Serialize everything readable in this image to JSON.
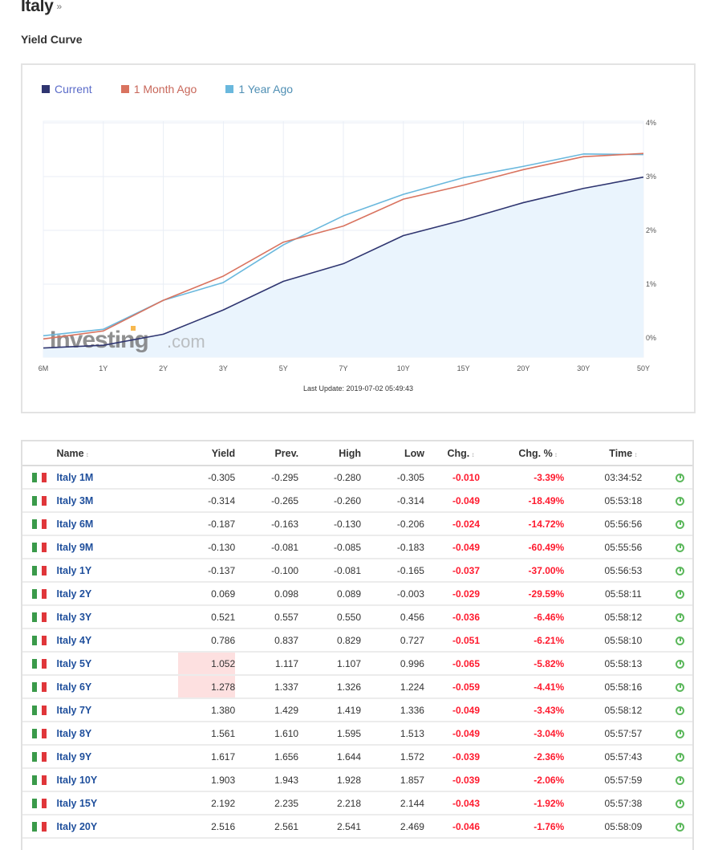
{
  "header": {
    "title": "Italy",
    "title_arrow": "»",
    "section_title": "Yield Curve"
  },
  "chart": {
    "legend": [
      {
        "label": "Current",
        "color": "#2f3570",
        "text_color": "#5a6bc9"
      },
      {
        "label": "1 Month Ago",
        "color": "#d9735f",
        "text_color": "#c8675a"
      },
      {
        "label": "1 Year Ago",
        "color": "#6ab8dd",
        "text_color": "#4f8fb4"
      }
    ],
    "watermark": {
      "brand": "Investing",
      "suffix": ".com"
    },
    "last_update": "Last Update: 2019-07-02 05:49:43",
    "area_fill": "#eaf4fd",
    "grid_color": "#e9eef6"
  },
  "chart_data": {
    "type": "line",
    "title": "Yield Curve",
    "xlabel": "",
    "ylabel": "",
    "categories": [
      "6M",
      "1Y",
      "2Y",
      "3Y",
      "5Y",
      "7Y",
      "10Y",
      "15Y",
      "20Y",
      "30Y",
      "50Y"
    ],
    "y_ticks": [
      "0%",
      "1%",
      "2%",
      "3%",
      "4%"
    ],
    "ylim": [
      -0.36,
      4.0
    ],
    "y_axis_position": "right",
    "grid": true,
    "legend_position": "top-left",
    "series": [
      {
        "name": "Current",
        "color": "#2f3570",
        "area": true,
        "values": [
          -0.187,
          -0.137,
          0.069,
          0.521,
          1.052,
          1.38,
          1.903,
          2.192,
          2.516,
          2.78,
          2.99
        ]
      },
      {
        "name": "1 Month Ago",
        "color": "#d9735f",
        "values": [
          -0.02,
          0.13,
          0.7,
          1.15,
          1.78,
          2.08,
          2.58,
          2.84,
          3.13,
          3.37,
          3.43
        ]
      },
      {
        "name": "1 Year Ago",
        "color": "#6ab8dd",
        "values": [
          0.04,
          0.16,
          0.7,
          1.03,
          1.73,
          2.27,
          2.67,
          2.98,
          3.19,
          3.42,
          3.41
        ]
      }
    ],
    "annotations": [
      "Last Update: 2019-07-02 05:49:43"
    ]
  },
  "table": {
    "columns": [
      {
        "label": "",
        "key": "flag"
      },
      {
        "label": "Name",
        "sortable": true
      },
      {
        "label": "Yield"
      },
      {
        "label": "Prev."
      },
      {
        "label": "High"
      },
      {
        "label": "Low"
      },
      {
        "label": "Chg.",
        "sortable": true
      },
      {
        "label": "Chg. %",
        "sortable": true
      },
      {
        "label": "Time",
        "sortable": true
      },
      {
        "label": ""
      }
    ],
    "rows": [
      {
        "name": "Italy 1M",
        "yield": "-0.305",
        "prev": "-0.295",
        "high": "-0.280",
        "low": "-0.305",
        "chg": "-0.010",
        "chg_pct": "-3.39%",
        "time": "03:34:52"
      },
      {
        "name": "Italy 3M",
        "yield": "-0.314",
        "prev": "-0.265",
        "high": "-0.260",
        "low": "-0.314",
        "chg": "-0.049",
        "chg_pct": "-18.49%",
        "time": "05:53:18"
      },
      {
        "name": "Italy 6M",
        "yield": "-0.187",
        "prev": "-0.163",
        "high": "-0.130",
        "low": "-0.206",
        "chg": "-0.024",
        "chg_pct": "-14.72%",
        "time": "05:56:56"
      },
      {
        "name": "Italy 9M",
        "yield": "-0.130",
        "prev": "-0.081",
        "high": "-0.085",
        "low": "-0.183",
        "chg": "-0.049",
        "chg_pct": "-60.49%",
        "time": "05:55:56"
      },
      {
        "name": "Italy 1Y",
        "yield": "-0.137",
        "prev": "-0.100",
        "high": "-0.081",
        "low": "-0.165",
        "chg": "-0.037",
        "chg_pct": "-37.00%",
        "time": "05:56:53"
      },
      {
        "name": "Italy 2Y",
        "yield": "0.069",
        "prev": "0.098",
        "high": "0.089",
        "low": "-0.003",
        "chg": "-0.029",
        "chg_pct": "-29.59%",
        "time": "05:58:11"
      },
      {
        "name": "Italy 3Y",
        "yield": "0.521",
        "prev": "0.557",
        "high": "0.550",
        "low": "0.456",
        "chg": "-0.036",
        "chg_pct": "-6.46%",
        "time": "05:58:12"
      },
      {
        "name": "Italy 4Y",
        "yield": "0.786",
        "prev": "0.837",
        "high": "0.829",
        "low": "0.727",
        "chg": "-0.051",
        "chg_pct": "-6.21%",
        "time": "05:58:10"
      },
      {
        "name": "Italy 5Y",
        "yield": "1.052",
        "prev": "1.117",
        "high": "1.107",
        "low": "0.996",
        "chg": "-0.065",
        "chg_pct": "-5.82%",
        "time": "05:58:13",
        "highlight": true
      },
      {
        "name": "Italy 6Y",
        "yield": "1.278",
        "prev": "1.337",
        "high": "1.326",
        "low": "1.224",
        "chg": "-0.059",
        "chg_pct": "-4.41%",
        "time": "05:58:16",
        "highlight": true
      },
      {
        "name": "Italy 7Y",
        "yield": "1.380",
        "prev": "1.429",
        "high": "1.419",
        "low": "1.336",
        "chg": "-0.049",
        "chg_pct": "-3.43%",
        "time": "05:58:12"
      },
      {
        "name": "Italy 8Y",
        "yield": "1.561",
        "prev": "1.610",
        "high": "1.595",
        "low": "1.513",
        "chg": "-0.049",
        "chg_pct": "-3.04%",
        "time": "05:57:57"
      },
      {
        "name": "Italy 9Y",
        "yield": "1.617",
        "prev": "1.656",
        "high": "1.644",
        "low": "1.572",
        "chg": "-0.039",
        "chg_pct": "-2.36%",
        "time": "05:57:43"
      },
      {
        "name": "Italy 10Y",
        "yield": "1.903",
        "prev": "1.943",
        "high": "1.928",
        "low": "1.857",
        "chg": "-0.039",
        "chg_pct": "-2.06%",
        "time": "05:57:59"
      },
      {
        "name": "Italy 15Y",
        "yield": "2.192",
        "prev": "2.235",
        "high": "2.218",
        "low": "2.144",
        "chg": "-0.043",
        "chg_pct": "-1.92%",
        "time": "05:57:38"
      },
      {
        "name": "Italy 20Y",
        "yield": "2.516",
        "prev": "2.561",
        "high": "2.541",
        "low": "2.469",
        "chg": "-0.046",
        "chg_pct": "-1.76%",
        "time": "05:58:09"
      }
    ]
  }
}
